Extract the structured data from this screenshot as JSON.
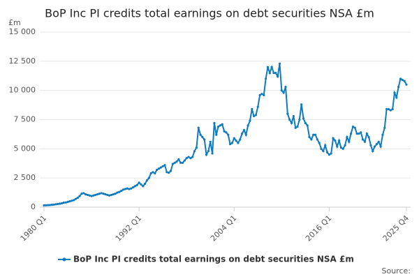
{
  "chart_data": {
    "type": "line",
    "title": "BoP Inc PI credits total earnings on debt securities NSA £m",
    "y_label": "£m",
    "source": "Source:",
    "categories": [
      "1980 Q1",
      null,
      null,
      null,
      null,
      null,
      null,
      null,
      null,
      null,
      null,
      null,
      null,
      null,
      null,
      null,
      null,
      null,
      null,
      null,
      null,
      null,
      null,
      null,
      null,
      null,
      null,
      null,
      null,
      null,
      null,
      null,
      null,
      null,
      null,
      null,
      null,
      null,
      null,
      null,
      null,
      null,
      null,
      null,
      null,
      null,
      null,
      null,
      "1992 Q1",
      null,
      null,
      null,
      null,
      null,
      null,
      null,
      null,
      null,
      null,
      null,
      null,
      null,
      null,
      null,
      null,
      null,
      null,
      null,
      null,
      null,
      null,
      null,
      null,
      null,
      null,
      null,
      null,
      null,
      null,
      null,
      null,
      null,
      null,
      null,
      null,
      null,
      null,
      null,
      null,
      null,
      null,
      null,
      null,
      null,
      null,
      null,
      "2004 Q1",
      null,
      null,
      null,
      null,
      null,
      null,
      null,
      null,
      null,
      null,
      null,
      null,
      null,
      null,
      null,
      null,
      null,
      null,
      null,
      null,
      null,
      null,
      null,
      null,
      null,
      null,
      null,
      null,
      null,
      null,
      null,
      null,
      null,
      null,
      null,
      null,
      null,
      null,
      null,
      null,
      null,
      null,
      null,
      null,
      null,
      null,
      null,
      "2016 Q1",
      null,
      null,
      null,
      null,
      null,
      null,
      null,
      null,
      null,
      null,
      null,
      null,
      null,
      null,
      null,
      null,
      null,
      null,
      null,
      null,
      null,
      null,
      null,
      null,
      null,
      null,
      null,
      null,
      null,
      null,
      null,
      null,
      null,
      null,
      null,
      null,
      null,
      null,
      "2025 Q4"
    ],
    "series": [
      {
        "name": "BoP Inc PI credits total earnings on debt securities NSA £m",
        "color": "#0e7abf",
        "values": [
          150,
          160,
          170,
          180,
          200,
          220,
          250,
          270,
          300,
          330,
          380,
          400,
          450,
          500,
          550,
          600,
          700,
          800,
          950,
          1150,
          1200,
          1100,
          1050,
          1000,
          950,
          1000,
          1050,
          1100,
          1150,
          1200,
          1150,
          1100,
          1050,
          1000,
          1050,
          1100,
          1150,
          1250,
          1300,
          1400,
          1500,
          1550,
          1600,
          1550,
          1600,
          1700,
          1800,
          1900,
          2100,
          1950,
          1800,
          2000,
          2300,
          2500,
          2900,
          3000,
          2900,
          3200,
          3300,
          3400,
          3500,
          3600,
          3000,
          2950,
          3100,
          3700,
          3800,
          3900,
          4100,
          3800,
          3800,
          4000,
          4200,
          4300,
          4200,
          4300,
          4800,
          5100,
          6800,
          6200,
          6000,
          5800,
          4500,
          4800,
          5600,
          4600,
          7200,
          6200,
          6900,
          7000,
          7100,
          6500,
          6400,
          6200,
          5400,
          5500,
          5900,
          5700,
          5500,
          5800,
          6300,
          6600,
          6200,
          7000,
          7400,
          8400,
          7800,
          7900,
          8600,
          9600,
          9700,
          9600,
          11000,
          12000,
          11500,
          12000,
          11500,
          11500,
          11200,
          12300,
          10000,
          9800,
          10300,
          8000,
          7500,
          7200,
          7800,
          6800,
          6900,
          7500,
          8800,
          7600,
          7200,
          7000,
          6000,
          5800,
          6200,
          6200,
          5800,
          5500,
          5000,
          4800,
          5300,
          4700,
          4500,
          4600,
          5900,
          5700,
          5200,
          5700,
          5100,
          5000,
          5300,
          6000,
          5600,
          6300,
          6900,
          6800,
          6300,
          6300,
          6400,
          5800,
          5600,
          6300,
          6000,
          5300,
          4800,
          5200,
          5400,
          5600,
          5200,
          6200,
          6800,
          8400,
          8400,
          8300,
          8400,
          9800,
          9400,
          10300,
          11000,
          10900,
          10800,
          10500
        ]
      }
    ],
    "ylim": [
      0,
      15000
    ],
    "yticks": [
      0,
      {
        "value": 2500,
        "label": "2 500"
      },
      {
        "value": 5000,
        "label": "5 000"
      },
      {
        "value": 7500,
        "label": "7 500"
      },
      {
        "value": 10000,
        "label": "10 000"
      },
      {
        "value": 12500,
        "label": "12 500"
      },
      {
        "value": 15000,
        "label": "15 000"
      }
    ],
    "grid": true
  }
}
